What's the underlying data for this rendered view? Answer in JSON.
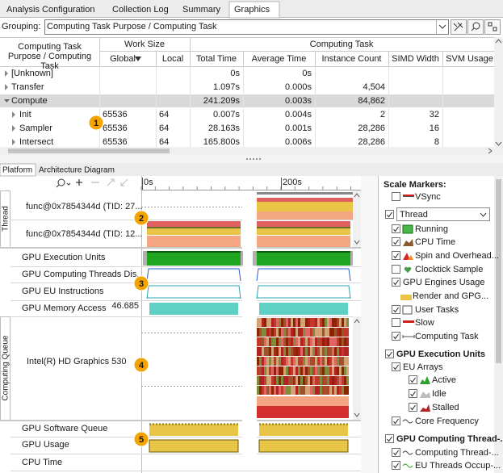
{
  "tabs": [
    "Analysis Configuration",
    "Collection Log",
    "Summary",
    "Graphics"
  ],
  "active_tab": 3,
  "grouping": {
    "label": "Grouping:",
    "value": "Computing Task Purpose / Computing Task"
  },
  "table": {
    "first_header": "Computing Task Purpose / Computing Task",
    "groups": [
      "Work Size",
      "Computing Task"
    ],
    "columns": [
      "Global",
      "Local",
      "Total Time",
      "Average Time",
      "Instance Count",
      "SIMD Width",
      "SVM Usage"
    ],
    "rows": [
      {
        "name": "[Unknown]",
        "cells": [
          null,
          null,
          "0s",
          "0s",
          null,
          null,
          null
        ]
      },
      {
        "name": "Transfer",
        "cells": [
          null,
          null,
          "1.097s",
          "0.000s",
          "4,504",
          null,
          null
        ]
      },
      {
        "name": "Compute",
        "cells": [
          null,
          null,
          "241.209s",
          "0.003s",
          "84,862",
          null,
          null
        ],
        "children": [
          {
            "name": "Init",
            "cells": [
              "65536",
              "64",
              "0.007s",
              "0.004s",
              "2",
              "32",
              null
            ]
          },
          {
            "name": "Sampler",
            "cells": [
              "65536",
              "64",
              "28.163s",
              "0.001s",
              "28,286",
              "16",
              null
            ]
          },
          {
            "name": "Intersect",
            "cells": [
              "65536",
              "64",
              "165.800s",
              "0.006s",
              "28,286",
              "8",
              null
            ]
          }
        ]
      }
    ]
  },
  "view_tabs": [
    "Platform",
    "Architecture Diagram"
  ],
  "timeline": {
    "ruler": [
      "0s",
      "200s"
    ],
    "groups": [
      "Thread",
      "Computing Queue"
    ],
    "rows": [
      "func@0x7854344d (TID: 27...",
      "func@0x7854344d (TID: 12...",
      "GPU Execution Units",
      "GPU Computing Threads Dis...",
      "GPU EU Instructions",
      "GPU Memory Access",
      "Intel(R) HD Graphics 530",
      "GPU Software Queue",
      "GPU Usage",
      "CPU Time"
    ],
    "memory_scale": "46.685"
  },
  "legend": {
    "title": "Scale Markers:",
    "items": [
      {
        "label": "VSync",
        "checked": false
      },
      {
        "label": "Thread",
        "checked": true
      },
      {
        "label": "Running",
        "checked": true
      },
      {
        "label": "CPU Time",
        "checked": true
      },
      {
        "label": "Spin and Overhead...",
        "checked": true
      },
      {
        "label": "Clocktick Sample",
        "checked": false
      },
      {
        "label": "GPU Engines Usage",
        "checked": true
      },
      {
        "label": "Render and GPG..."
      },
      {
        "label": "User Tasks",
        "checked": true
      },
      {
        "label": "Slow",
        "checked": false
      },
      {
        "label": "Computing Task",
        "checked": true
      },
      {
        "label": "GPU Execution Units",
        "checked": true
      },
      {
        "label": "EU Arrays",
        "checked": true
      },
      {
        "label": "Active",
        "checked": true
      },
      {
        "label": "Idle",
        "checked": true
      },
      {
        "label": "Stalled",
        "checked": true
      },
      {
        "label": "Core Frequency",
        "checked": true
      },
      {
        "label": "GPU Computing Thread-...",
        "checked": true
      },
      {
        "label": "Computing Thread-...",
        "checked": true
      },
      {
        "label": "EU Threads Occup-...",
        "checked": true
      }
    ]
  },
  "callouts": [
    "1",
    "2",
    "3",
    "4",
    "5"
  ]
}
